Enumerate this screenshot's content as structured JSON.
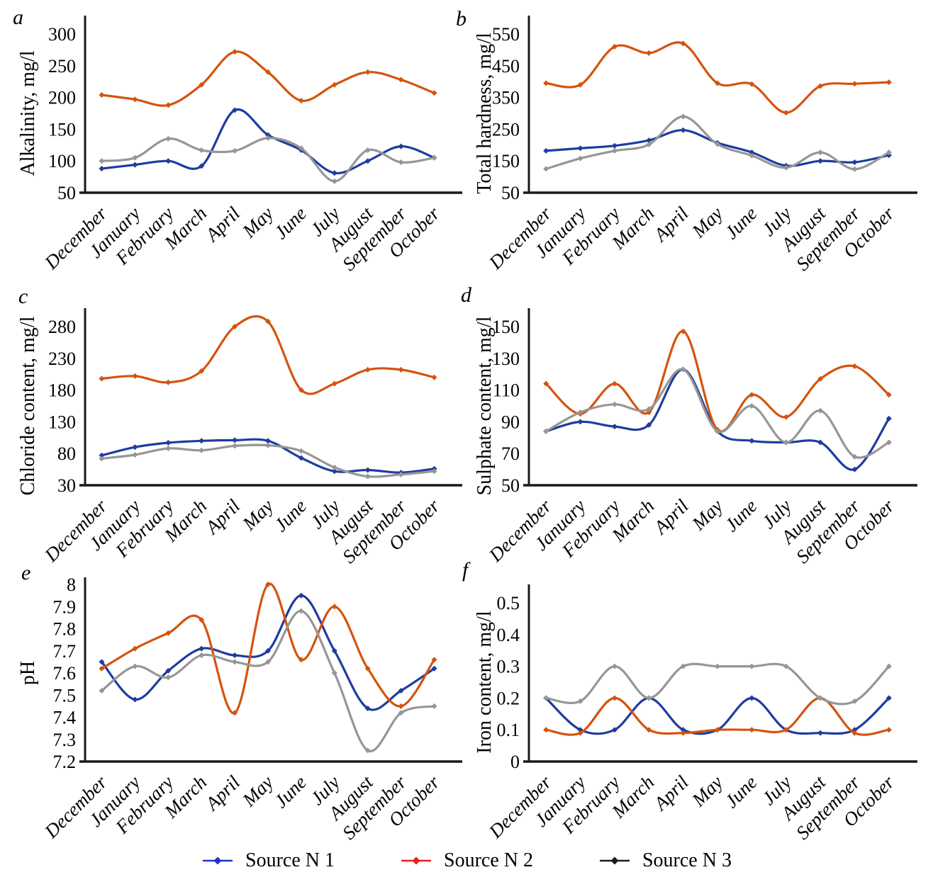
{
  "months": [
    "December",
    "January",
    "February",
    "March",
    "April",
    "May",
    "June",
    "July",
    "August",
    "September",
    "October"
  ],
  "legend": {
    "items": [
      {
        "label": "Source N 1",
        "color": "#1c34c8"
      },
      {
        "label": "Source N 2",
        "color": "#f21b15"
      },
      {
        "label": "Source N 3",
        "color": "#1c1c1c"
      }
    ]
  },
  "chart_data": [
    {
      "type": "line",
      "letter": "a",
      "ylabel": "Alkalinity, mg/l",
      "xlabel": "",
      "yticks": [
        300,
        250,
        200,
        150,
        100,
        50
      ],
      "ylim": [
        50,
        300
      ],
      "grid": false,
      "legend_position": "shared-bottom",
      "categories": [
        "December",
        "January",
        "February",
        "March",
        "April",
        "May",
        "June",
        "July",
        "August",
        "September",
        "October"
      ],
      "series": [
        {
          "name": "Source N 1",
          "color": "#1e3ca0",
          "values": [
            88,
            94,
            100,
            92,
            180,
            141,
            117,
            81,
            100,
            123,
            105
          ]
        },
        {
          "name": "Source N 2",
          "color": "#d4530f",
          "values": [
            204,
            197,
            188,
            220,
            272,
            240,
            195,
            220,
            240,
            228,
            207
          ]
        },
        {
          "name": "Source N 3",
          "color": "#969696",
          "values": [
            100,
            105,
            135,
            117,
            116,
            136,
            120,
            68,
            117,
            98,
            105
          ]
        }
      ]
    },
    {
      "type": "line",
      "letter": "b",
      "ylabel": "Total hardness, mg/l",
      "xlabel": "",
      "yticks": [
        550,
        450,
        350,
        250,
        150,
        50
      ],
      "ylim": [
        50,
        550
      ],
      "grid": false,
      "legend_position": "shared-bottom",
      "categories": [
        "December",
        "January",
        "February",
        "March",
        "April",
        "May",
        "June",
        "July",
        "August",
        "September",
        "October"
      ],
      "series": [
        {
          "name": "Source N 1",
          "color": "#1e3ca0",
          "values": [
            182,
            190,
            198,
            215,
            247,
            207,
            177,
            135,
            150,
            146,
            168
          ]
        },
        {
          "name": "Source N 2",
          "color": "#d4530f",
          "values": [
            395,
            390,
            510,
            490,
            520,
            395,
            392,
            302,
            386,
            393,
            398
          ]
        },
        {
          "name": "Source N 3",
          "color": "#969696",
          "values": [
            125,
            158,
            182,
            202,
            290,
            203,
            167,
            129,
            177,
            124,
            177
          ]
        }
      ]
    },
    {
      "type": "line",
      "letter": "c",
      "ylabel": "Chloride content, mg/l",
      "xlabel": "",
      "yticks": [
        280,
        230,
        180,
        130,
        80,
        30
      ],
      "ylim": [
        30,
        280
      ],
      "grid": false,
      "legend_position": "shared-bottom",
      "categories": [
        "December",
        "January",
        "February",
        "March",
        "April",
        "May",
        "June",
        "July",
        "August",
        "September",
        "October"
      ],
      "series": [
        {
          "name": "Source N 1",
          "color": "#1e3ca0",
          "values": [
            77,
            90,
            97,
            100,
            101,
            100,
            73,
            52,
            54,
            50,
            56
          ]
        },
        {
          "name": "Source N 2",
          "color": "#d4530f",
          "values": [
            198,
            202,
            192,
            210,
            280,
            288,
            180,
            190,
            212,
            212,
            200
          ]
        },
        {
          "name": "Source N 3",
          "color": "#969696",
          "values": [
            72,
            78,
            88,
            85,
            92,
            93,
            84,
            58,
            44,
            47,
            52
          ]
        }
      ]
    },
    {
      "type": "line",
      "letter": "d",
      "ylabel": "Sulphate content, mg/l",
      "xlabel": "",
      "yticks": [
        150,
        130,
        110,
        90,
        70,
        50
      ],
      "ylim": [
        50,
        150
      ],
      "grid": false,
      "legend_position": "shared-bottom",
      "categories": [
        "December",
        "January",
        "February",
        "March",
        "April",
        "May",
        "June",
        "July",
        "August",
        "September",
        "October"
      ],
      "series": [
        {
          "name": "Source N 1",
          "color": "#1e3ca0",
          "values": [
            84,
            90,
            87,
            88,
            123,
            84,
            78,
            77,
            77,
            60,
            92
          ]
        },
        {
          "name": "Source N 2",
          "color": "#d4530f",
          "values": [
            114,
            95,
            114,
            96,
            147,
            85,
            107,
            93,
            117,
            125,
            107
          ]
        },
        {
          "name": "Source N 3",
          "color": "#969696",
          "values": [
            84,
            96,
            101,
            98,
            123,
            84,
            100,
            77,
            97,
            68,
            77
          ]
        }
      ]
    },
    {
      "type": "line",
      "letter": "e",
      "ylabel": "pH",
      "xlabel": "",
      "yticks": [
        8,
        7.9,
        7.8,
        7.7,
        7.6,
        7.5,
        7.4,
        7.3,
        7.2
      ],
      "ylim": [
        7.2,
        8
      ],
      "grid": false,
      "legend_position": "shared-bottom",
      "categories": [
        "December",
        "January",
        "February",
        "March",
        "April",
        "May",
        "June",
        "July",
        "August",
        "September",
        "October"
      ],
      "series": [
        {
          "name": "Source N 1",
          "color": "#1e3ca0",
          "values": [
            7.65,
            7.48,
            7.61,
            7.71,
            7.68,
            7.7,
            7.95,
            7.7,
            7.44,
            7.52,
            7.62
          ]
        },
        {
          "name": "Source N 2",
          "color": "#d4530f",
          "values": [
            7.62,
            7.71,
            7.78,
            7.84,
            7.42,
            8.0,
            7.66,
            7.9,
            7.62,
            7.45,
            7.66
          ]
        },
        {
          "name": "Source N 3",
          "color": "#969696",
          "values": [
            7.52,
            7.63,
            7.58,
            7.68,
            7.65,
            7.65,
            7.88,
            7.6,
            7.25,
            7.42,
            7.45
          ]
        }
      ]
    },
    {
      "type": "line",
      "letter": "f",
      "ylabel": "Iron content, mg/l",
      "xlabel": "",
      "yticks": [
        0.5,
        0.4,
        0.3,
        0.2,
        0.1,
        0
      ],
      "ylim": [
        0,
        0.5
      ],
      "grid": false,
      "legend_position": "shared-bottom",
      "categories": [
        "December",
        "January",
        "February",
        "March",
        "April",
        "May",
        "June",
        "July",
        "August",
        "September",
        "October"
      ],
      "series": [
        {
          "name": "Source N 1",
          "color": "#1e3ca0",
          "values": [
            0.2,
            0.1,
            0.1,
            0.2,
            0.1,
            0.1,
            0.2,
            0.1,
            0.09,
            0.1,
            0.2
          ]
        },
        {
          "name": "Source N 2",
          "color": "#d4530f",
          "values": [
            0.1,
            0.09,
            0.2,
            0.1,
            0.09,
            0.1,
            0.1,
            0.1,
            0.2,
            0.09,
            0.1
          ]
        },
        {
          "name": "Source N 3",
          "color": "#969696",
          "values": [
            0.2,
            0.19,
            0.3,
            0.2,
            0.3,
            0.3,
            0.3,
            0.3,
            0.2,
            0.19,
            0.3
          ]
        }
      ]
    }
  ]
}
